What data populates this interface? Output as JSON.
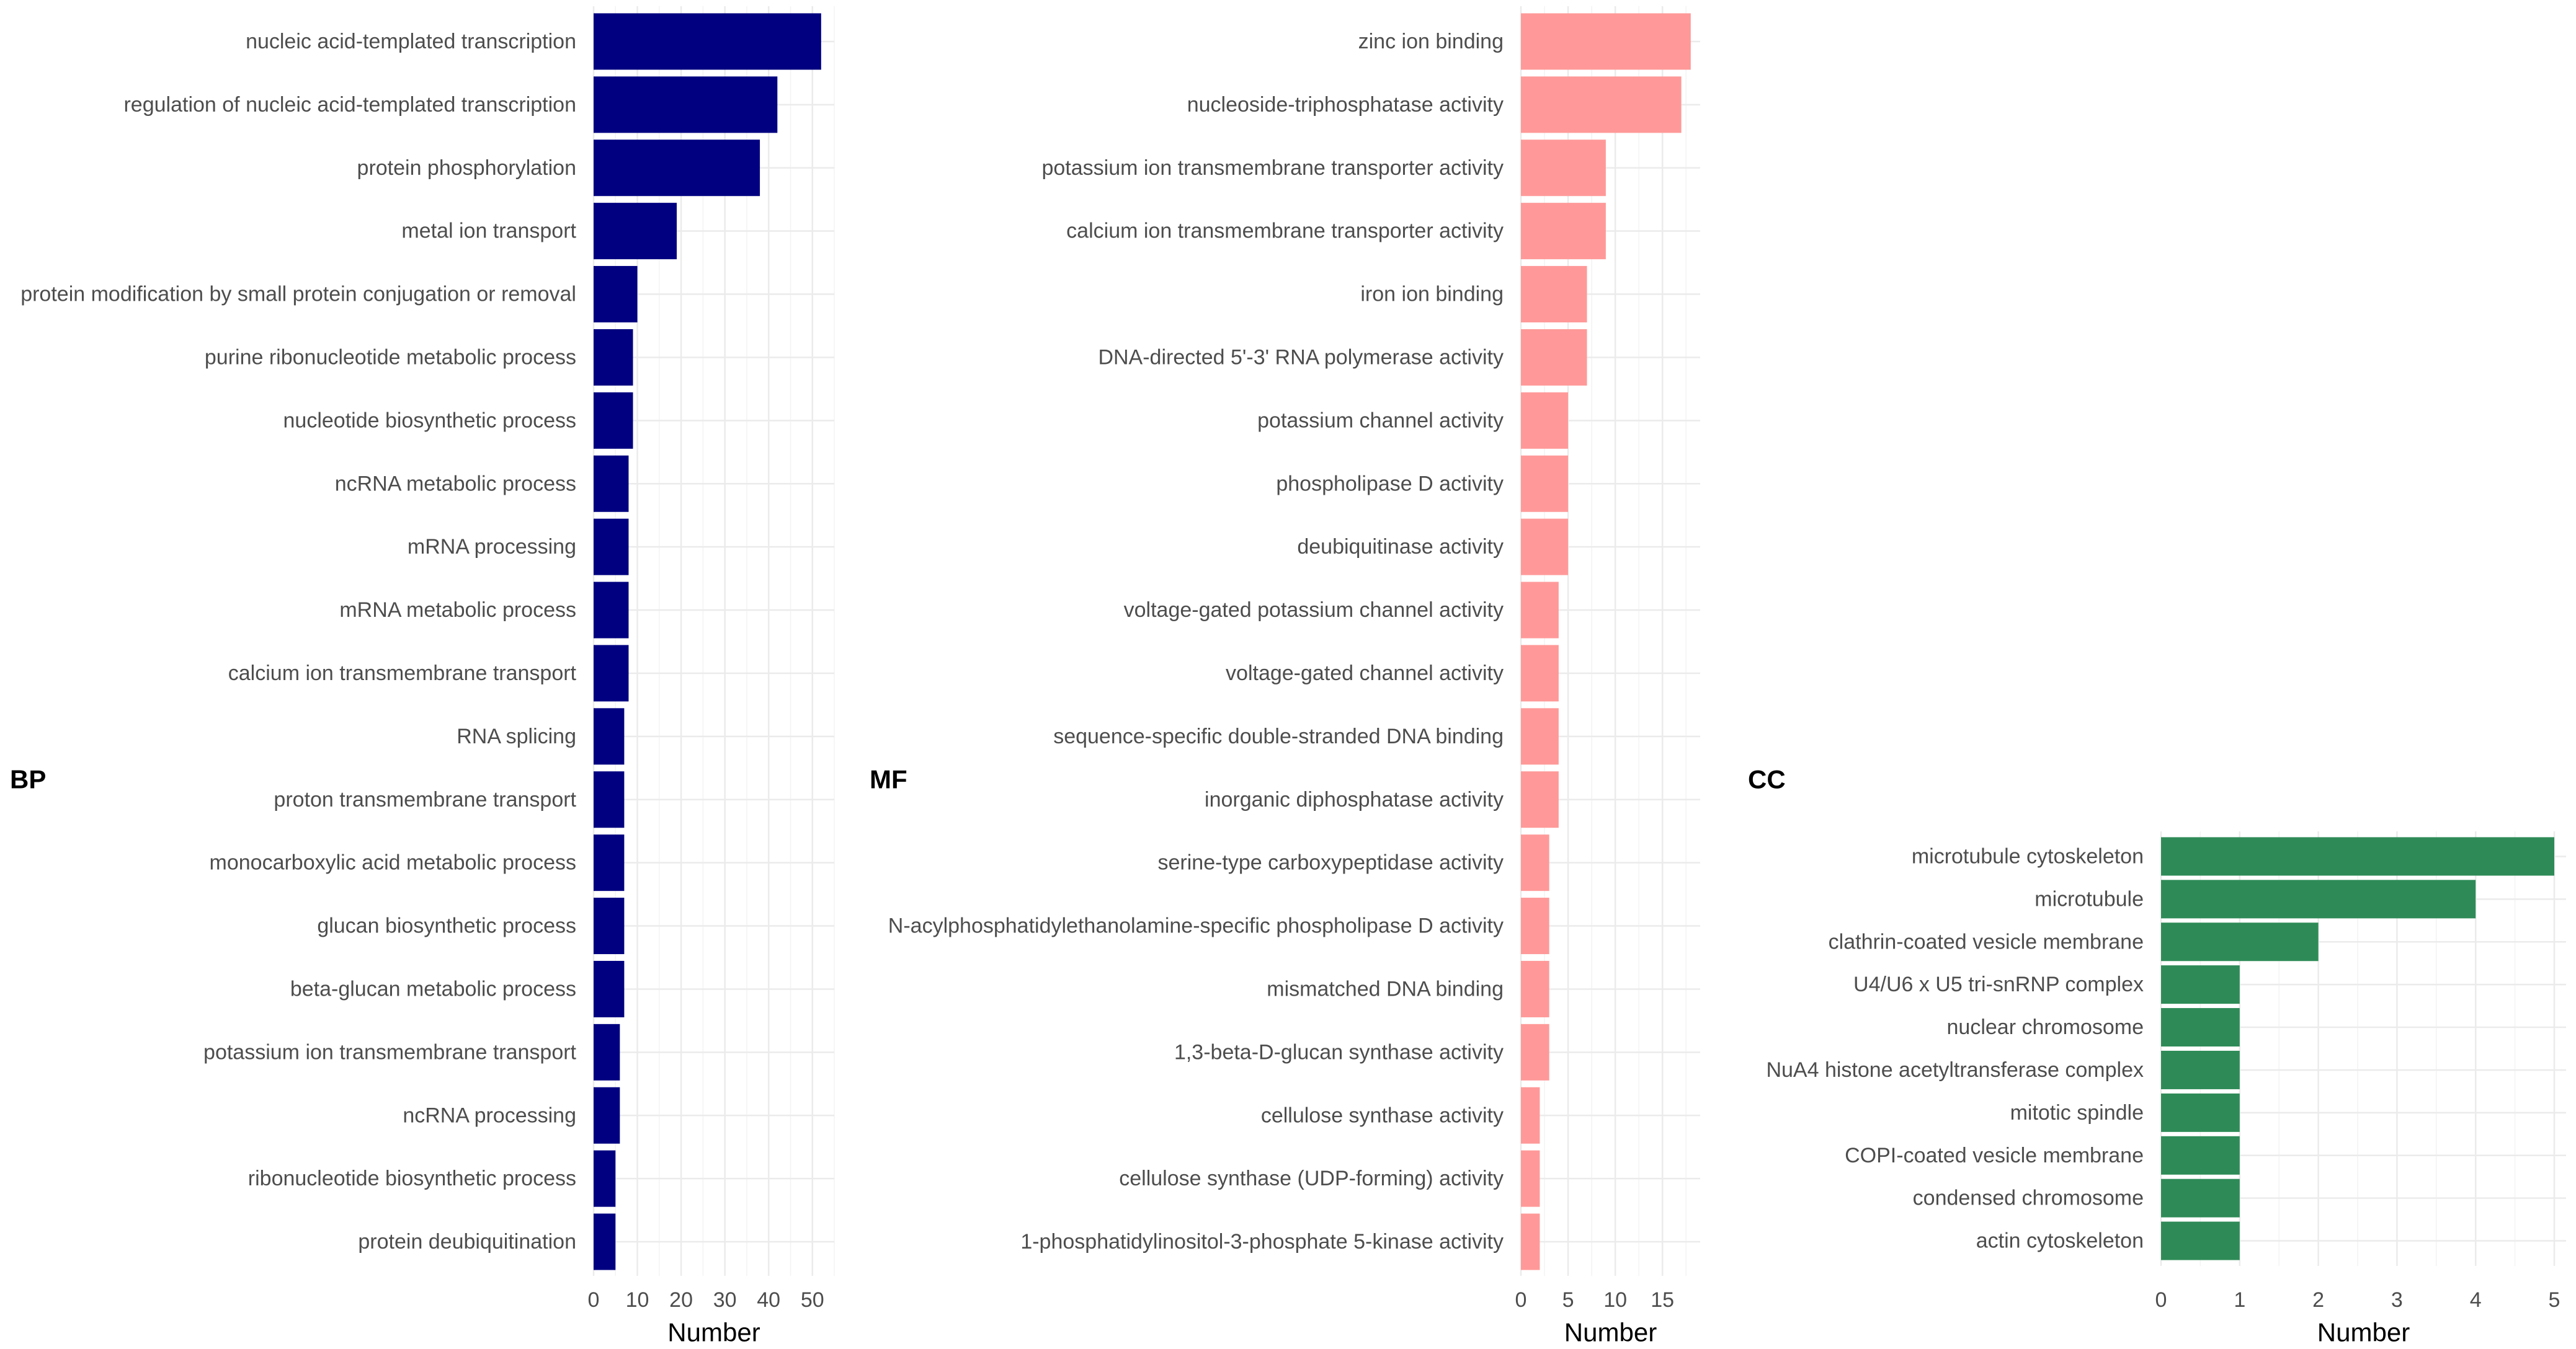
{
  "chart_data": [
    {
      "type": "bar",
      "orientation": "horizontal",
      "title": "BP",
      "xlabel": "Number",
      "ylabel": "",
      "color": "#000080",
      "xlim": [
        0,
        55
      ],
      "ticks": [
        0,
        10,
        20,
        30,
        40,
        50
      ],
      "categories": [
        "nucleic acid-templated transcription",
        "regulation of nucleic acid-templated transcription",
        "protein phosphorylation",
        "metal ion transport",
        "protein modification by small protein conjugation or removal",
        "purine ribonucleotide metabolic process",
        "nucleotide biosynthetic process",
        "ncRNA metabolic process",
        "mRNA processing",
        "mRNA metabolic process",
        "calcium ion transmembrane transport",
        "RNA splicing",
        "proton transmembrane transport",
        "monocarboxylic acid metabolic process",
        "glucan biosynthetic process",
        "beta-glucan metabolic process",
        "potassium ion transmembrane transport",
        "ncRNA processing",
        "ribonucleotide biosynthetic process",
        "protein deubiquitination"
      ],
      "values": [
        52,
        42,
        38,
        19,
        10,
        9,
        9,
        8,
        8,
        8,
        8,
        7,
        7,
        7,
        7,
        7,
        6,
        6,
        5,
        5
      ]
    },
    {
      "type": "bar",
      "orientation": "horizontal",
      "title": "MF",
      "xlabel": "Number",
      "ylabel": "",
      "color": "#FF9999",
      "xlim": [
        0,
        19
      ],
      "ticks": [
        0,
        5,
        10,
        15
      ],
      "categories": [
        "zinc ion binding",
        "nucleoside-triphosphatase activity",
        "potassium ion transmembrane transporter activity",
        "calcium ion transmembrane transporter activity",
        "iron ion binding",
        "DNA-directed 5'-3' RNA polymerase activity",
        "potassium channel activity",
        "phospholipase D activity",
        "deubiquitinase activity",
        "voltage-gated potassium channel activity",
        "voltage-gated channel activity",
        "sequence-specific double-stranded DNA binding",
        "inorganic diphosphatase activity",
        "serine-type carboxypeptidase activity",
        "N-acylphosphatidylethanolamine-specific phospholipase D activity",
        "mismatched DNA binding",
        "1,3-beta-D-glucan synthase activity",
        "cellulose synthase activity",
        "cellulose synthase (UDP-forming) activity",
        "1-phosphatidylinositol-3-phosphate 5-kinase activity"
      ],
      "values": [
        18,
        17,
        9,
        9,
        7,
        7,
        5,
        5,
        5,
        4,
        4,
        4,
        4,
        3,
        3,
        3,
        3,
        2,
        2,
        2
      ]
    },
    {
      "type": "bar",
      "orientation": "horizontal",
      "title": "CC",
      "xlabel": "Number",
      "ylabel": "",
      "color": "#2E8B57",
      "xlim": [
        0,
        5.15
      ],
      "ticks": [
        0,
        1,
        2,
        3,
        4,
        5
      ],
      "categories": [
        "microtubule cytoskeleton",
        "microtubule",
        "clathrin-coated vesicle membrane",
        "U4/U6 x U5 tri-snRNP complex",
        "nuclear chromosome",
        "NuA4 histone acetyltransferase complex",
        "mitotic spindle",
        "COPI-coated vesicle membrane",
        "condensed chromosome",
        "actin cytoskeleton"
      ],
      "values": [
        5,
        4,
        2,
        1,
        1,
        1,
        1,
        1,
        1,
        1
      ]
    }
  ]
}
